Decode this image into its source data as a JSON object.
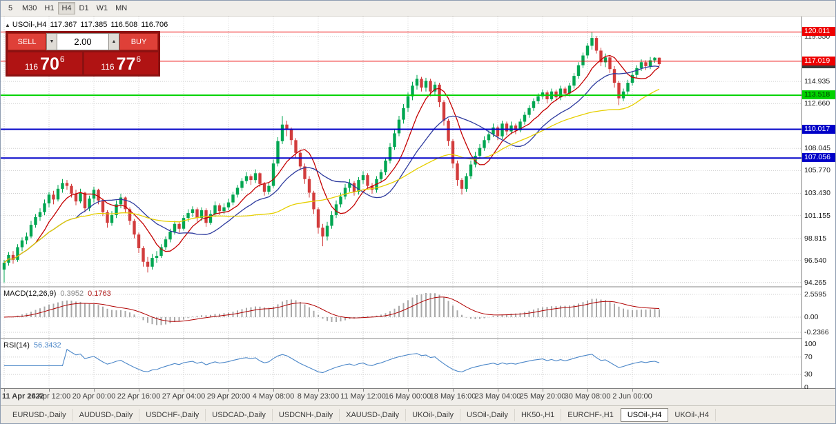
{
  "toolbar": {
    "timeframes": [
      {
        "label": "5",
        "active": false
      },
      {
        "label": "M30",
        "active": false
      },
      {
        "label": "H1",
        "active": false
      },
      {
        "label": "H4",
        "active": true
      },
      {
        "label": "D1",
        "active": false
      },
      {
        "label": "W1",
        "active": false
      },
      {
        "label": "MN",
        "active": false
      }
    ]
  },
  "chart_header": {
    "collapse_icon": "▲",
    "symbol": "USOil-,H4",
    "open": "117.367",
    "high": "117.385",
    "low": "116.508",
    "close": "116.706"
  },
  "trade_panel": {
    "sell_label": "SELL",
    "buy_label": "BUY",
    "volume": "2.00",
    "dec_icon": "▼",
    "inc_icon": "▲",
    "bid": {
      "big": "116",
      "pips": "70",
      "frac": "6"
    },
    "ask": {
      "big": "116",
      "pips": "77",
      "frac": "6"
    }
  },
  "price_axis": {
    "ticks": [
      {
        "label": "119.550",
        "price": 119.55
      },
      {
        "label": "114.935",
        "price": 114.935
      },
      {
        "label": "112.660",
        "price": 112.66
      },
      {
        "label": "108.045",
        "price": 108.045
      },
      {
        "label": "105.770",
        "price": 105.77
      },
      {
        "label": "103.430",
        "price": 103.43
      },
      {
        "label": "101.155",
        "price": 101.155
      },
      {
        "label": "98.815",
        "price": 98.815
      },
      {
        "label": "96.540",
        "price": 96.54
      },
      {
        "label": "94.265",
        "price": 94.265
      }
    ],
    "tags": [
      {
        "label": "120.011",
        "price": 120.011,
        "bg": "#ee0000",
        "fg": "#ffffff",
        "line": true,
        "lw": 1
      },
      {
        "label": "116.706",
        "price": 116.706,
        "bg": "#3a3a3a",
        "fg": "#ffffff",
        "line": false,
        "lw": 0
      },
      {
        "label": "117.019",
        "price": 117.019,
        "bg": "#ee0000",
        "fg": "#ffffff",
        "line": true,
        "lw": 1
      },
      {
        "label": "113.518",
        "price": 113.518,
        "bg": "#00d200",
        "fg": "#063306",
        "line": true,
        "lw": 2
      },
      {
        "label": "110.017",
        "price": 110.017,
        "bg": "#0000c8",
        "fg": "#ffffff",
        "line": true,
        "lw": 2
      },
      {
        "label": "107.056",
        "price": 107.056,
        "bg": "#0000c8",
        "fg": "#ffffff",
        "line": true,
        "lw": 2
      }
    ]
  },
  "macd_panel": {
    "title": "MACD(12,26,9)",
    "value_main": "0.3952",
    "value_signal": "0.1763",
    "axis": [
      "2.5595",
      "0.00",
      "-0.2366"
    ]
  },
  "rsi_panel": {
    "title": "RSI(14)",
    "value": "56.3432",
    "axis": [
      "100",
      "70",
      "30",
      "0"
    ]
  },
  "tabs": {
    "items": [
      {
        "label": "EURUSD-,Daily",
        "active": false
      },
      {
        "label": "AUDUSD-,Daily",
        "active": false
      },
      {
        "label": "USDCHF-,Daily",
        "active": false
      },
      {
        "label": "USDCAD-,Daily",
        "active": false
      },
      {
        "label": "USDCNH-,Daily",
        "active": false
      },
      {
        "label": "XAUUSD-,Daily",
        "active": false
      },
      {
        "label": "UKOil-,Daily",
        "active": false
      },
      {
        "label": "USOil-,Daily",
        "active": false
      },
      {
        "label": "HK50-,H1",
        "active": false
      },
      {
        "label": "EURCHF-,H1",
        "active": false
      },
      {
        "label": "USOil-,H4",
        "active": true
      },
      {
        "label": "UKOil-,H4",
        "active": false
      }
    ]
  },
  "chart_data": {
    "type": "candlestick",
    "symbol": "USOil-",
    "timeframe": "H4",
    "price_range": [
      93.9,
      121.6
    ],
    "colors": {
      "up": "#00a651",
      "down": "#d23c3c",
      "grid": "#cfcfcf",
      "ma_fast": "#c40000",
      "ma_mid": "#2d3a9e",
      "ma_slow": "#e6cf00",
      "macd_hist": "#a9a9a9",
      "macd_signal": "#b00000",
      "rsi": "#4a86c8"
    },
    "mas": [
      {
        "period": 8,
        "color": "#c40000"
      },
      {
        "period": 17,
        "color": "#2d3a9e"
      },
      {
        "period": 40,
        "color": "#e6cf00"
      }
    ],
    "time_labels": [
      {
        "index": 0,
        "label": "11 Apr 2022"
      },
      {
        "index": 10,
        "label": "14 Apr 12:00"
      },
      {
        "index": 20,
        "label": "20 Apr 00:00"
      },
      {
        "index": 30,
        "label": "22 Apr 16:00"
      },
      {
        "index": 40,
        "label": "27 Apr 04:00"
      },
      {
        "index": 50,
        "label": "29 Apr 20:00"
      },
      {
        "index": 60,
        "label": "4 May 08:00"
      },
      {
        "index": 70,
        "label": "8 May 23:00"
      },
      {
        "index": 80,
        "label": "11 May 12:00"
      },
      {
        "index": 90,
        "label": "16 May 00:00"
      },
      {
        "index": 100,
        "label": "18 May 16:00"
      },
      {
        "index": 110,
        "label": "23 May 04:00"
      },
      {
        "index": 120,
        "label": "25 May 20:00"
      },
      {
        "index": 130,
        "label": "30 May 08:00"
      },
      {
        "index": 140,
        "label": "2 Jun 00:00"
      }
    ],
    "candles": [
      [
        95.6,
        96.6,
        94.27,
        96.3
      ],
      [
        96.3,
        97.4,
        96.0,
        97.1
      ],
      [
        97.1,
        97.5,
        96.2,
        96.6
      ],
      [
        96.6,
        98.2,
        96.4,
        97.9
      ],
      [
        97.9,
        98.9,
        97.5,
        98.6
      ],
      [
        98.6,
        99.4,
        98.2,
        99.0
      ],
      [
        99.0,
        100.6,
        98.8,
        100.2
      ],
      [
        100.2,
        101.3,
        99.9,
        101.0
      ],
      [
        101.0,
        101.9,
        100.6,
        101.5
      ],
      [
        101.5,
        102.8,
        101.2,
        102.4
      ],
      [
        102.4,
        103.6,
        102.0,
        103.3
      ],
      [
        103.3,
        103.7,
        102.3,
        102.8
      ],
      [
        102.8,
        104.3,
        102.6,
        103.9
      ],
      [
        103.9,
        104.9,
        103.5,
        104.5
      ],
      [
        104.5,
        104.8,
        103.8,
        104.2
      ],
      [
        104.2,
        104.4,
        103.0,
        103.4
      ],
      [
        103.4,
        103.8,
        102.2,
        102.6
      ],
      [
        102.6,
        103.9,
        102.4,
        103.5
      ],
      [
        103.5,
        103.6,
        101.5,
        101.9
      ],
      [
        101.9,
        103.2,
        101.6,
        102.9
      ],
      [
        102.9,
        104.1,
        102.5,
        103.8
      ],
      [
        103.8,
        103.9,
        102.3,
        102.7
      ],
      [
        102.7,
        102.9,
        101.1,
        101.5
      ],
      [
        101.5,
        101.7,
        99.9,
        100.4
      ],
      [
        100.4,
        101.6,
        100.1,
        101.2
      ],
      [
        101.2,
        102.7,
        100.9,
        102.3
      ],
      [
        102.3,
        103.4,
        101.9,
        103.0
      ],
      [
        103.0,
        103.1,
        101.4,
        101.8
      ],
      [
        101.8,
        102.0,
        100.2,
        100.6
      ],
      [
        100.6,
        100.8,
        98.8,
        99.2
      ],
      [
        99.2,
        99.4,
        97.3,
        97.8
      ],
      [
        97.8,
        98.0,
        95.9,
        96.4
      ],
      [
        96.4,
        96.9,
        95.3,
        95.9
      ],
      [
        95.9,
        97.2,
        95.6,
        96.8
      ],
      [
        96.8,
        97.5,
        96.3,
        97.0
      ],
      [
        97.0,
        98.2,
        96.8,
        97.9
      ],
      [
        97.9,
        99.0,
        97.6,
        98.7
      ],
      [
        98.7,
        99.8,
        98.4,
        99.5
      ],
      [
        99.5,
        100.6,
        99.2,
        100.3
      ],
      [
        100.3,
        100.5,
        99.4,
        99.8
      ],
      [
        99.8,
        101.2,
        99.6,
        100.9
      ],
      [
        100.9,
        101.8,
        100.5,
        101.4
      ],
      [
        101.4,
        102.1,
        101.0,
        101.8
      ],
      [
        101.8,
        102.0,
        100.5,
        100.9
      ],
      [
        100.9,
        102.0,
        100.6,
        101.7
      ],
      [
        101.7,
        101.9,
        100.0,
        100.4
      ],
      [
        100.4,
        101.7,
        100.2,
        101.3
      ],
      [
        101.3,
        102.6,
        101.0,
        102.2
      ],
      [
        102.2,
        102.4,
        101.2,
        101.6
      ],
      [
        101.6,
        102.4,
        101.3,
        102.0
      ],
      [
        102.0,
        102.9,
        101.7,
        102.5
      ],
      [
        102.5,
        103.6,
        102.2,
        103.3
      ],
      [
        103.3,
        104.3,
        103.0,
        104.0
      ],
      [
        104.0,
        105.0,
        103.7,
        104.7
      ],
      [
        104.7,
        105.6,
        104.4,
        105.2
      ],
      [
        105.2,
        105.4,
        104.3,
        104.8
      ],
      [
        104.8,
        105.9,
        104.5,
        105.5
      ],
      [
        105.5,
        105.6,
        104.1,
        104.4
      ],
      [
        104.4,
        104.6,
        103.2,
        103.6
      ],
      [
        103.6,
        104.6,
        103.3,
        104.2
      ],
      [
        104.2,
        106.9,
        104.0,
        106.5
      ],
      [
        106.5,
        109.2,
        106.2,
        108.8
      ],
      [
        108.8,
        111.38,
        108.5,
        110.5
      ],
      [
        110.5,
        110.9,
        109.3,
        110.0
      ],
      [
        110.0,
        110.2,
        108.4,
        108.9
      ],
      [
        108.9,
        109.1,
        107.1,
        107.6
      ],
      [
        107.6,
        107.9,
        105.8,
        106.2
      ],
      [
        106.2,
        106.5,
        104.4,
        104.9
      ],
      [
        104.9,
        105.2,
        103.0,
        103.5
      ],
      [
        103.5,
        103.7,
        101.3,
        101.8
      ],
      [
        101.8,
        102.0,
        99.3,
        99.9
      ],
      [
        99.9,
        100.3,
        98.0,
        99.0
      ],
      [
        99.0,
        100.5,
        98.6,
        100.1
      ],
      [
        100.1,
        101.6,
        99.8,
        101.2
      ],
      [
        101.2,
        102.7,
        100.9,
        102.3
      ],
      [
        102.3,
        103.5,
        102.0,
        103.1
      ],
      [
        103.1,
        104.4,
        102.8,
        104.0
      ],
      [
        104.0,
        104.9,
        103.6,
        104.5
      ],
      [
        104.5,
        104.7,
        103.2,
        103.6
      ],
      [
        103.6,
        105.1,
        103.3,
        104.8
      ],
      [
        104.8,
        105.7,
        104.4,
        105.3
      ],
      [
        105.3,
        105.5,
        103.9,
        104.2
      ],
      [
        104.2,
        104.5,
        103.4,
        103.8
      ],
      [
        103.8,
        105.2,
        103.5,
        104.9
      ],
      [
        104.9,
        105.9,
        104.6,
        105.6
      ],
      [
        105.6,
        107.1,
        105.3,
        106.8
      ],
      [
        106.8,
        108.6,
        106.5,
        108.2
      ],
      [
        108.2,
        110.0,
        107.9,
        109.6
      ],
      [
        109.6,
        111.4,
        109.3,
        111.0
      ],
      [
        111.0,
        112.6,
        110.6,
        112.2
      ],
      [
        112.2,
        113.8,
        111.8,
        113.4
      ],
      [
        113.4,
        114.9,
        113.0,
        114.5
      ],
      [
        114.5,
        115.6,
        114.1,
        115.2
      ],
      [
        115.2,
        115.4,
        113.9,
        114.3
      ],
      [
        114.3,
        115.3,
        113.9,
        115.0
      ],
      [
        115.0,
        115.2,
        113.4,
        113.9
      ],
      [
        113.9,
        114.9,
        113.5,
        114.6
      ],
      [
        114.6,
        114.8,
        112.3,
        112.8
      ],
      [
        112.8,
        113.0,
        110.4,
        110.9
      ],
      [
        110.9,
        111.1,
        108.3,
        108.8
      ],
      [
        108.8,
        109.0,
        106.0,
        106.5
      ],
      [
        106.5,
        106.8,
        104.2,
        104.8
      ],
      [
        104.8,
        105.0,
        103.3,
        103.9
      ],
      [
        103.9,
        105.5,
        103.6,
        105.2
      ],
      [
        105.2,
        106.8,
        104.9,
        106.4
      ],
      [
        106.4,
        107.7,
        106.1,
        107.3
      ],
      [
        107.3,
        108.5,
        107.0,
        108.1
      ],
      [
        108.1,
        109.3,
        107.8,
        108.9
      ],
      [
        108.9,
        109.9,
        108.6,
        109.5
      ],
      [
        109.5,
        110.6,
        109.2,
        110.2
      ],
      [
        110.2,
        110.4,
        108.9,
        109.3
      ],
      [
        109.3,
        110.9,
        109.0,
        110.6
      ],
      [
        110.6,
        110.8,
        109.4,
        109.8
      ],
      [
        109.8,
        110.8,
        109.5,
        110.4
      ],
      [
        110.4,
        110.6,
        109.5,
        109.9
      ],
      [
        109.9,
        111.1,
        109.7,
        110.8
      ],
      [
        110.8,
        111.8,
        110.5,
        111.5
      ],
      [
        111.5,
        112.5,
        111.2,
        112.2
      ],
      [
        112.2,
        113.2,
        111.9,
        112.9
      ],
      [
        112.9,
        113.7,
        112.6,
        113.4
      ],
      [
        113.4,
        114.1,
        113.1,
        113.8
      ],
      [
        113.8,
        114.0,
        112.7,
        113.1
      ],
      [
        113.1,
        114.2,
        112.9,
        113.9
      ],
      [
        113.9,
        114.1,
        112.9,
        113.3
      ],
      [
        113.3,
        114.5,
        113.0,
        114.2
      ],
      [
        114.2,
        114.4,
        113.3,
        113.7
      ],
      [
        113.7,
        114.8,
        113.4,
        114.5
      ],
      [
        114.5,
        115.8,
        114.2,
        115.5
      ],
      [
        115.5,
        116.9,
        115.2,
        116.6
      ],
      [
        116.6,
        117.9,
        116.3,
        117.6
      ],
      [
        117.6,
        118.9,
        117.3,
        118.6
      ],
      [
        118.6,
        119.98,
        118.2,
        119.4
      ],
      [
        119.4,
        119.6,
        117.8,
        118.1
      ],
      [
        118.1,
        118.4,
        116.5,
        116.9
      ],
      [
        116.9,
        117.8,
        116.4,
        117.4
      ],
      [
        117.4,
        117.6,
        115.8,
        116.2
      ],
      [
        116.2,
        116.5,
        114.3,
        114.8
      ],
      [
        114.8,
        115.0,
        112.5,
        113.2
      ],
      [
        113.2,
        114.2,
        112.9,
        113.9
      ],
      [
        113.9,
        115.1,
        113.6,
        114.8
      ],
      [
        114.8,
        115.9,
        114.5,
        115.6
      ],
      [
        115.6,
        116.6,
        115.3,
        116.3
      ],
      [
        116.3,
        117.2,
        116.0,
        116.9
      ],
      [
        116.9,
        117.1,
        116.1,
        116.5
      ],
      [
        116.5,
        117.45,
        116.2,
        117.1
      ],
      [
        117.1,
        117.42,
        116.85,
        117.37
      ],
      [
        117.37,
        117.39,
        116.51,
        116.71
      ]
    ]
  }
}
